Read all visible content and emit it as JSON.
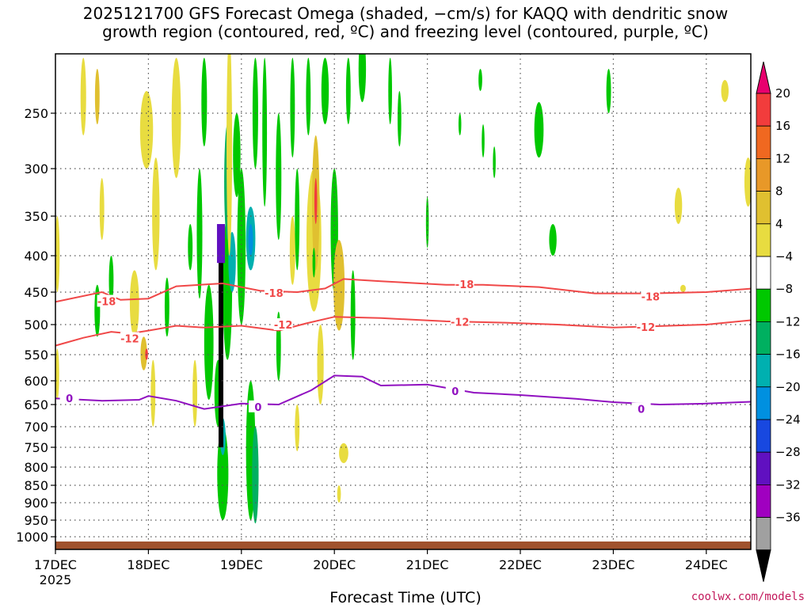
{
  "title_lines": [
    "2025121700 GFS Forecast Omega (shaded, −cm/s) for KAQQ with dendritic snow",
    "growth region (contoured, red, ºC) and freezing level (contoured, purple, ºC)"
  ],
  "xlabel": "Forecast Time (UTC)",
  "credit": "coolwx.com/models",
  "chart_data": {
    "type": "heatmap",
    "title": "2025121700 GFS Forecast Omega (shaded, −cm/s) for KAQQ with dendritic snow growth region (contoured, red, ºC) and freezing level (contoured, purple, ºC)",
    "xlabel": "Forecast Time (UTC)",
    "ylabel": "",
    "x_range_days": [
      0,
      7.5
    ],
    "x_ticks": [
      {
        "day": 0,
        "label": "17DEC",
        "sub": "2025"
      },
      {
        "day": 1,
        "label": "18DEC",
        "sub": ""
      },
      {
        "day": 2,
        "label": "19DEC",
        "sub": ""
      },
      {
        "day": 3,
        "label": "20DEC",
        "sub": ""
      },
      {
        "day": 4,
        "label": "21DEC",
        "sub": ""
      },
      {
        "day": 5,
        "label": "22DEC",
        "sub": ""
      },
      {
        "day": 6,
        "label": "23DEC",
        "sub": ""
      },
      {
        "day": 7,
        "label": "24DEC",
        "sub": ""
      }
    ],
    "y_range_hpa": [
      1050,
      200
    ],
    "y_ticks": [
      250,
      300,
      350,
      400,
      450,
      500,
      550,
      600,
      650,
      700,
      750,
      800,
      850,
      900,
      950,
      1000
    ],
    "colorbar": {
      "labels": [
        "20",
        "16",
        "12",
        "8",
        "4",
        "−4",
        "−8",
        "−12",
        "−16",
        "−20",
        "−24",
        "−28",
        "−32",
        "−36"
      ],
      "colors": [
        "#e8006e",
        "#f23c3c",
        "#f06820",
        "#e89828",
        "#e0c030",
        "#e8dc40",
        "#ffffff",
        "#00c800",
        "#00b060",
        "#00b0b0",
        "#0090e0",
        "#1848e0",
        "#6010c0",
        "#a000c0",
        "#a0a0a0",
        "#000000"
      ]
    },
    "contours": [
      {
        "name": "-18C",
        "label": "-18",
        "color": "#f04848",
        "points": [
          [
            0,
            465
          ],
          [
            0.5,
            450
          ],
          [
            0.7,
            462
          ],
          [
            1.0,
            460
          ],
          [
            1.3,
            442
          ],
          [
            1.8,
            438
          ],
          [
            2.2,
            448
          ],
          [
            2.6,
            450
          ],
          [
            2.9,
            445
          ],
          [
            3.1,
            432
          ],
          [
            3.5,
            435
          ],
          [
            4.2,
            440
          ],
          [
            4.6,
            440
          ],
          [
            5.2,
            443
          ],
          [
            5.8,
            452
          ],
          [
            6.4,
            452
          ],
          [
            7.0,
            450
          ],
          [
            7.5,
            445
          ]
        ],
        "labels_at": [
          [
            0.55,
            464
          ],
          [
            2.35,
            451
          ],
          [
            4.4,
            439
          ],
          [
            6.4,
            457
          ]
        ]
      },
      {
        "name": "-12C",
        "label": "-12",
        "color": "#f04848",
        "points": [
          [
            0,
            535
          ],
          [
            0.3,
            522
          ],
          [
            0.6,
            512
          ],
          [
            0.8,
            515
          ],
          [
            1.0,
            510
          ],
          [
            1.3,
            502
          ],
          [
            1.6,
            505
          ],
          [
            2.0,
            502
          ],
          [
            2.4,
            510
          ],
          [
            2.7,
            498
          ],
          [
            3.0,
            488
          ],
          [
            3.5,
            490
          ],
          [
            4.2,
            495
          ],
          [
            4.8,
            497
          ],
          [
            5.4,
            500
          ],
          [
            6.0,
            505
          ],
          [
            6.6,
            502
          ],
          [
            7.0,
            500
          ],
          [
            7.5,
            493
          ]
        ],
        "labels_at": [
          [
            0.8,
            523
          ],
          [
            2.45,
            500
          ],
          [
            4.35,
            496
          ],
          [
            6.35,
            504
          ]
        ]
      },
      {
        "name": "0C",
        "label": "0",
        "color": "#9010c0",
        "points": [
          [
            0,
            637
          ],
          [
            0.5,
            642
          ],
          [
            0.9,
            640
          ],
          [
            1.0,
            632
          ],
          [
            1.3,
            642
          ],
          [
            1.6,
            660
          ],
          [
            2.0,
            648
          ],
          [
            2.4,
            650
          ],
          [
            2.75,
            620
          ],
          [
            3.0,
            590
          ],
          [
            3.3,
            592
          ],
          [
            3.5,
            610
          ],
          [
            4.0,
            608
          ],
          [
            4.5,
            625
          ],
          [
            5.0,
            630
          ],
          [
            5.6,
            638
          ],
          [
            6.0,
            645
          ],
          [
            6.5,
            650
          ],
          [
            7.0,
            648
          ],
          [
            7.5,
            644
          ]
        ],
        "labels_at": [
          [
            0.15,
            637
          ],
          [
            2.18,
            655
          ],
          [
            4.3,
            622
          ],
          [
            6.3,
            660
          ]
        ]
      }
    ]
  }
}
